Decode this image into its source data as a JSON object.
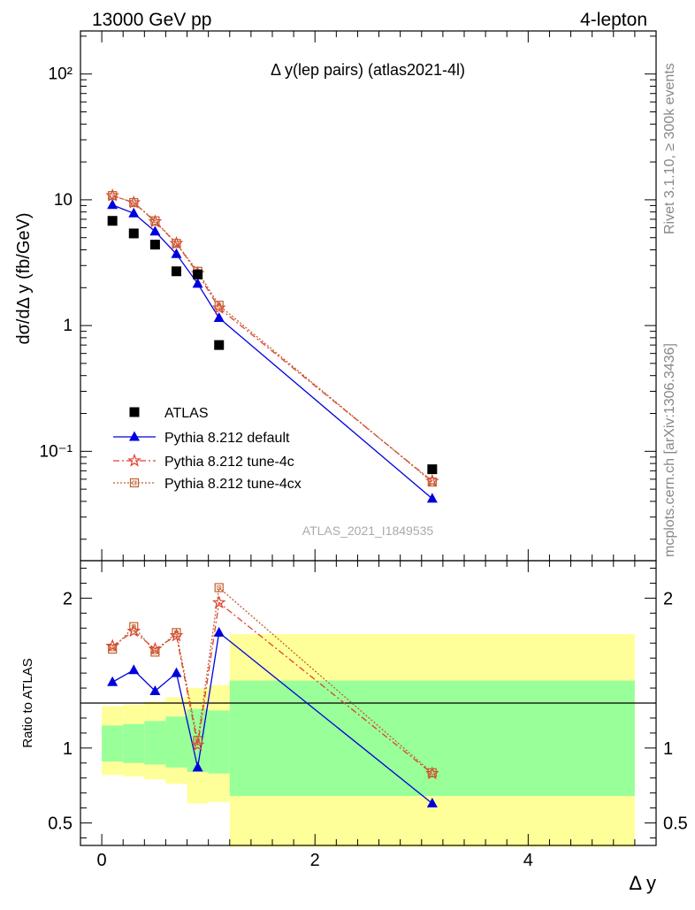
{
  "header": {
    "left": "13000 GeV pp",
    "right": "4-lepton"
  },
  "side": {
    "rivet": "Rivet 3.1.10, ≥ 300k events",
    "mcplots": "mcplots.cern.ch [arXiv:1306.3436]"
  },
  "colors": {
    "data": "#000000",
    "default": "#0000dd",
    "tune4c": "#e04030",
    "tune4cx": "#c06030",
    "band_inner": "#99ff99",
    "band_outer": "#ffff99"
  },
  "chart_data": [
    {
      "type": "line",
      "title": "Δ y(lep pairs) (atlas2021-4l)",
      "ylabel": "dσ/dΔ y (fb/GeV)",
      "xlabel": "",
      "yscale": "log",
      "ylim": [
        0.0135,
        220
      ],
      "xlim": [
        -0.2,
        5.2
      ],
      "y_ticks": [
        {
          "value": 0.1,
          "label": "10⁻¹"
        },
        {
          "value": 1,
          "label": "1"
        },
        {
          "value": 10,
          "label": "10"
        },
        {
          "value": 100,
          "label": "10²"
        }
      ],
      "watermark": "ATLAS_2021_I1849535",
      "legend_position": "lower-left",
      "series": [
        {
          "name": "ATLAS",
          "style": "data",
          "color_key": "data",
          "x": [
            0.1,
            0.3,
            0.5,
            0.7,
            0.9,
            1.1,
            3.1
          ],
          "y": [
            6.8,
            5.4,
            4.4,
            2.7,
            2.55,
            0.7,
            0.072
          ]
        },
        {
          "name": "Pythia 8.212 default",
          "style": "default",
          "color_key": "default",
          "x": [
            0.1,
            0.3,
            0.5,
            0.7,
            0.9,
            1.1,
            3.1
          ],
          "y": [
            9.1,
            7.8,
            5.6,
            3.7,
            2.15,
            1.15,
            0.042
          ]
        },
        {
          "name": "Pythia 8.212 tune-4c",
          "style": "tune4c",
          "color_key": "tune4c",
          "x": [
            0.1,
            0.3,
            0.5,
            0.7,
            0.9,
            1.1,
            3.1
          ],
          "y": [
            10.8,
            9.5,
            6.7,
            4.5,
            2.6,
            1.38,
            0.058
          ]
        },
        {
          "name": "Pythia 8.212 tune-4cx",
          "style": "tune4cx",
          "color_key": "tune4cx",
          "x": [
            0.1,
            0.3,
            0.5,
            0.7,
            0.9,
            1.1,
            3.1
          ],
          "y": [
            10.8,
            9.5,
            6.8,
            4.5,
            2.7,
            1.45,
            0.057
          ]
        }
      ]
    },
    {
      "type": "line",
      "title": "",
      "ylabel": "Ratio to ATLAS",
      "xlabel": "Δ y",
      "yscale": "linear",
      "ylim": [
        0.35,
        2.25
      ],
      "xlim": [
        -0.2,
        5.2
      ],
      "y_ticks": [
        {
          "value": 0.5,
          "label": "0.5"
        },
        {
          "value": 1,
          "label": "1"
        },
        {
          "value": 2,
          "label": "2"
        }
      ],
      "x_ticks": [
        {
          "value": 0,
          "label": "0"
        },
        {
          "value": 2,
          "label": "2"
        },
        {
          "value": 4,
          "label": "4"
        }
      ],
      "bands": {
        "edges": [
          0,
          0.2,
          0.4,
          0.6,
          0.8,
          1.0,
          1.2,
          5.0
        ],
        "outer_lo": [
          0.82,
          0.81,
          0.79,
          0.76,
          0.63,
          0.64,
          0.34
        ],
        "outer_hi": [
          1.28,
          1.29,
          1.31,
          1.34,
          1.4,
          1.42,
          1.76
        ],
        "inner_lo": [
          0.91,
          0.9,
          0.89,
          0.87,
          0.84,
          0.83,
          0.68
        ],
        "inner_hi": [
          1.15,
          1.16,
          1.18,
          1.21,
          1.26,
          1.25,
          1.45
        ]
      },
      "series": [
        {
          "name": "Pythia 8.212 default",
          "style": "default",
          "color_key": "default",
          "x": [
            0.1,
            0.3,
            0.5,
            0.7,
            0.9,
            1.1,
            3.1
          ],
          "y": [
            1.44,
            1.52,
            1.38,
            1.5,
            0.87,
            1.77,
            0.63
          ]
        },
        {
          "name": "Pythia 8.212 tune-4c",
          "style": "tune4c",
          "color_key": "tune4c",
          "x": [
            0.1,
            0.3,
            0.5,
            0.7,
            0.9,
            1.1,
            3.1
          ],
          "y": [
            1.68,
            1.78,
            1.66,
            1.75,
            1.02,
            1.97,
            0.83
          ]
        },
        {
          "name": "Pythia 8.212 tune-4cx",
          "style": "tune4cx",
          "color_key": "tune4cx",
          "x": [
            0.1,
            0.3,
            0.5,
            0.7,
            0.9,
            1.1,
            3.1
          ],
          "y": [
            1.66,
            1.81,
            1.64,
            1.77,
            1.05,
            2.07,
            0.835
          ]
        }
      ]
    }
  ]
}
